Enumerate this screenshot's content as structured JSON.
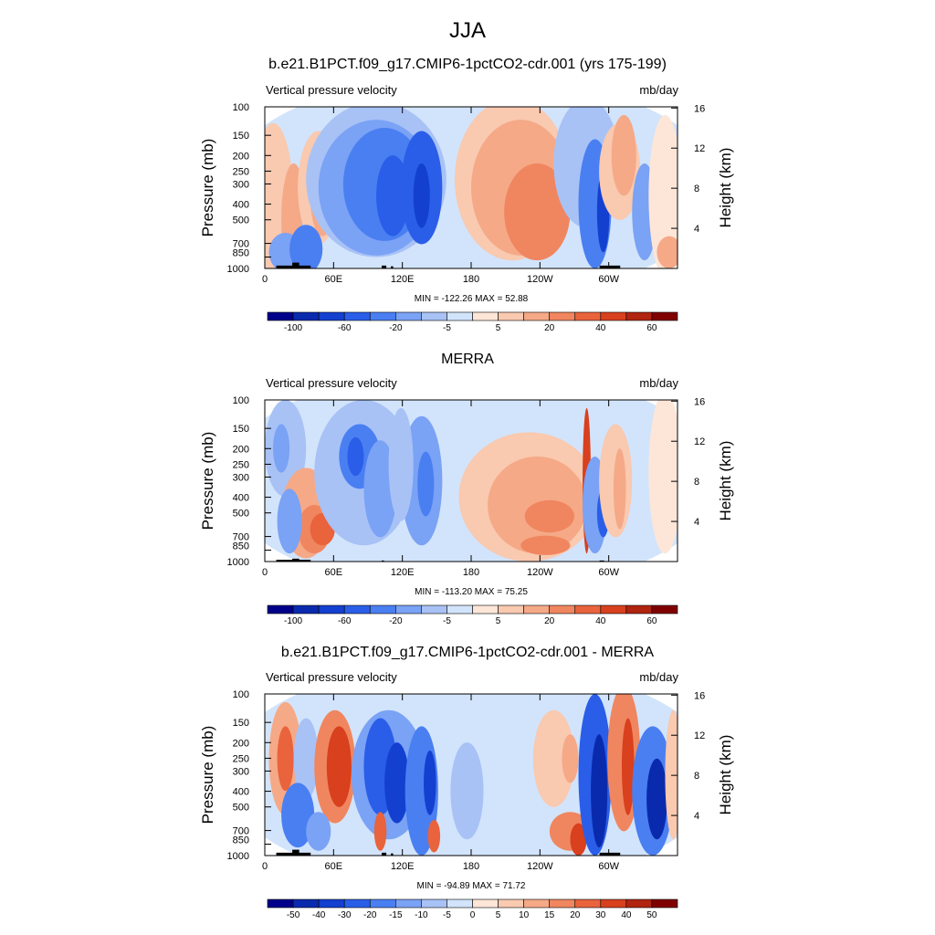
{
  "main_title": "JJA",
  "chart_data": [
    {
      "type": "heatmap",
      "title": "b.e21.B1PCT.f09_g17.CMIP6-1pctCO2-cdr.001 (yrs 175-199)",
      "variable": "Vertical pressure velocity",
      "units": "mb/day",
      "ylabel": "Pressure (mb)",
      "ylabel_right": "Height (km)",
      "x_ticks": [
        "0",
        "60E",
        "120E",
        "180",
        "120W",
        "60W"
      ],
      "y_ticks": [
        "100",
        "150",
        "200",
        "250",
        "300",
        "400",
        "500",
        "700",
        "850",
        "1000"
      ],
      "y_right_ticks": [
        "16",
        "12",
        "8",
        "4"
      ],
      "min_max": "MIN = -122.26  MAX =  52.88",
      "colorbar_labels": [
        "-100",
        "-60",
        "-20",
        "-5",
        "5",
        "20",
        "40",
        "60"
      ]
    },
    {
      "type": "heatmap",
      "title": "MERRA",
      "variable": "Vertical pressure velocity",
      "units": "mb/day",
      "ylabel": "Pressure (mb)",
      "ylabel_right": "Height (km)",
      "x_ticks": [
        "0",
        "60E",
        "120E",
        "180",
        "120W",
        "60W"
      ],
      "y_ticks": [
        "100",
        "150",
        "200",
        "250",
        "300",
        "400",
        "500",
        "700",
        "850",
        "1000"
      ],
      "y_right_ticks": [
        "16",
        "12",
        "8",
        "4"
      ],
      "min_max": "MIN = -113.20  MAX =  75.25",
      "colorbar_labels": [
        "-100",
        "-60",
        "-20",
        "-5",
        "5",
        "20",
        "40",
        "60"
      ]
    },
    {
      "type": "heatmap",
      "title": "b.e21.B1PCT.f09_g17.CMIP6-1pctCO2-cdr.001 - MERRA",
      "variable": "Vertical pressure velocity",
      "units": "mb/day",
      "ylabel": "Pressure (mb)",
      "ylabel_right": "Height (km)",
      "x_ticks": [
        "0",
        "60E",
        "120E",
        "180",
        "120W",
        "60W"
      ],
      "y_ticks": [
        "100",
        "150",
        "200",
        "250",
        "300",
        "400",
        "500",
        "700",
        "850",
        "1000"
      ],
      "y_right_ticks": [
        "16",
        "12",
        "8",
        "4"
      ],
      "min_max": "MIN = -94.89  MAX =  71.72",
      "colorbar_labels": [
        "-50",
        "-40",
        "-30",
        "-20",
        "-15",
        "-10",
        "-5",
        "0",
        "5",
        "10",
        "15",
        "20",
        "30",
        "40",
        "50"
      ]
    }
  ],
  "colors": {
    "scale": [
      "#00008b",
      "#0a2aae",
      "#1440d0",
      "#2a5ee8",
      "#4a7ff2",
      "#7aa2f5",
      "#a8c2f6",
      "#d2e4fb",
      "#fde6d8",
      "#f9c9b0",
      "#f5a987",
      "#f0865f",
      "#e9633c",
      "#d8401e",
      "#b02410",
      "#800000"
    ],
    "topography": "#000000"
  }
}
